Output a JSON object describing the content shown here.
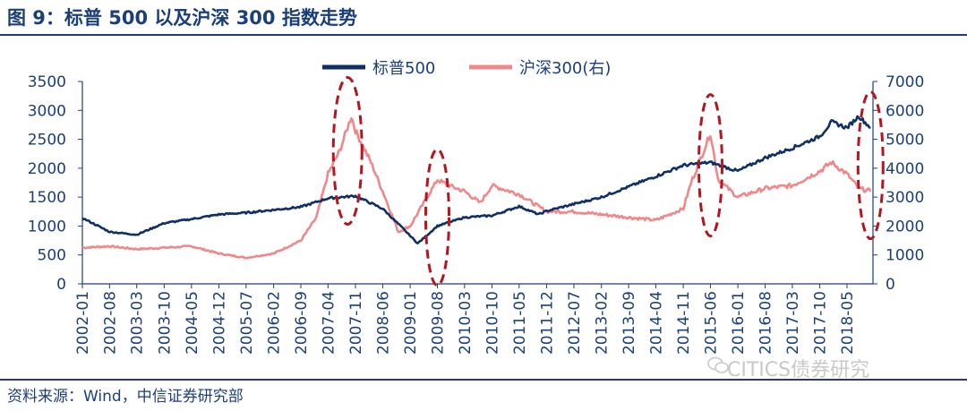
{
  "title": "图 9：标普 500 以及沪深 300 指数走势",
  "source": "资料来源：Wind，中信证券研究部",
  "watermark": "CITICS债券研究",
  "colors": {
    "sp500": "#0f2f66",
    "hs300": "#f0888a",
    "ellipse": "#b3161c",
    "axis": "#1a3f7a"
  },
  "chart_data": {
    "type": "line",
    "title": "",
    "x_tick_labels": [
      "2002-01",
      "2002-08",
      "2003-03",
      "2003-10",
      "2004-05",
      "2004-12",
      "2005-07",
      "2006-02",
      "2006-09",
      "2007-04",
      "2007-11",
      "2008-06",
      "2009-01",
      "2009-08",
      "2010-03",
      "2010-10",
      "2011-05",
      "2011-12",
      "2012-07",
      "2013-02",
      "2013-09",
      "2014-04",
      "2014-11",
      "2015-06",
      "2016-01",
      "2016-08",
      "2017-03",
      "2017-10",
      "2018-05"
    ],
    "y_left": {
      "min": 0,
      "max": 3500,
      "ticks": [
        0,
        500,
        1000,
        1500,
        2000,
        2500,
        3000,
        3500
      ]
    },
    "y_right": {
      "min": 0,
      "max": 7000,
      "ticks": [
        0,
        1000,
        2000,
        3000,
        4000,
        5000,
        6000,
        7000
      ]
    },
    "legend_position": "top-center",
    "series": [
      {
        "name": "标普500",
        "axis": "left",
        "x": [
          "2002-01",
          "2002-08",
          "2003-03",
          "2003-10",
          "2004-05",
          "2004-12",
          "2005-07",
          "2006-02",
          "2006-09",
          "2007-04",
          "2007-11",
          "2008-06",
          "2008-12",
          "2009-03",
          "2009-08",
          "2010-03",
          "2010-10",
          "2011-05",
          "2011-10",
          "2011-12",
          "2012-07",
          "2013-02",
          "2013-09",
          "2014-04",
          "2014-11",
          "2015-06",
          "2016-01",
          "2016-08",
          "2017-03",
          "2017-10",
          "2018-01",
          "2018-05",
          "2018-08",
          "2018-11"
        ],
        "values": [
          1140,
          900,
          850,
          1050,
          1120,
          1200,
          1230,
          1280,
          1330,
          1480,
          1520,
          1300,
          900,
          700,
          1000,
          1150,
          1180,
          1340,
          1200,
          1260,
          1380,
          1500,
          1680,
          1860,
          2050,
          2100,
          1950,
          2180,
          2350,
          2550,
          2800,
          2700,
          2900,
          2700
        ]
      },
      {
        "name": "沪深300(右)",
        "axis": "right",
        "x": [
          "2002-01",
          "2002-08",
          "2003-03",
          "2003-10",
          "2004-05",
          "2004-12",
          "2005-07",
          "2006-02",
          "2006-09",
          "2007-01",
          "2007-04",
          "2007-07",
          "2007-10",
          "2007-11",
          "2008-03",
          "2008-06",
          "2008-10",
          "2009-01",
          "2009-08",
          "2009-11",
          "2010-03",
          "2010-07",
          "2010-10",
          "2011-05",
          "2011-12",
          "2012-07",
          "2013-02",
          "2013-09",
          "2014-04",
          "2014-11",
          "2015-01",
          "2015-06",
          "2015-08",
          "2016-01",
          "2016-08",
          "2017-03",
          "2017-10",
          "2018-01",
          "2018-05",
          "2018-08",
          "2018-11"
        ],
        "values": [
          1250,
          1300,
          1200,
          1250,
          1300,
          1050,
          900,
          1050,
          1500,
          2300,
          3800,
          4600,
          5800,
          5300,
          4200,
          3200,
          1800,
          2000,
          3600,
          3400,
          3200,
          2800,
          3400,
          3100,
          2500,
          2500,
          2400,
          2300,
          2200,
          2600,
          3500,
          5200,
          3600,
          3000,
          3300,
          3400,
          3900,
          4200,
          3800,
          3300,
          3200
        ]
      }
    ]
  }
}
